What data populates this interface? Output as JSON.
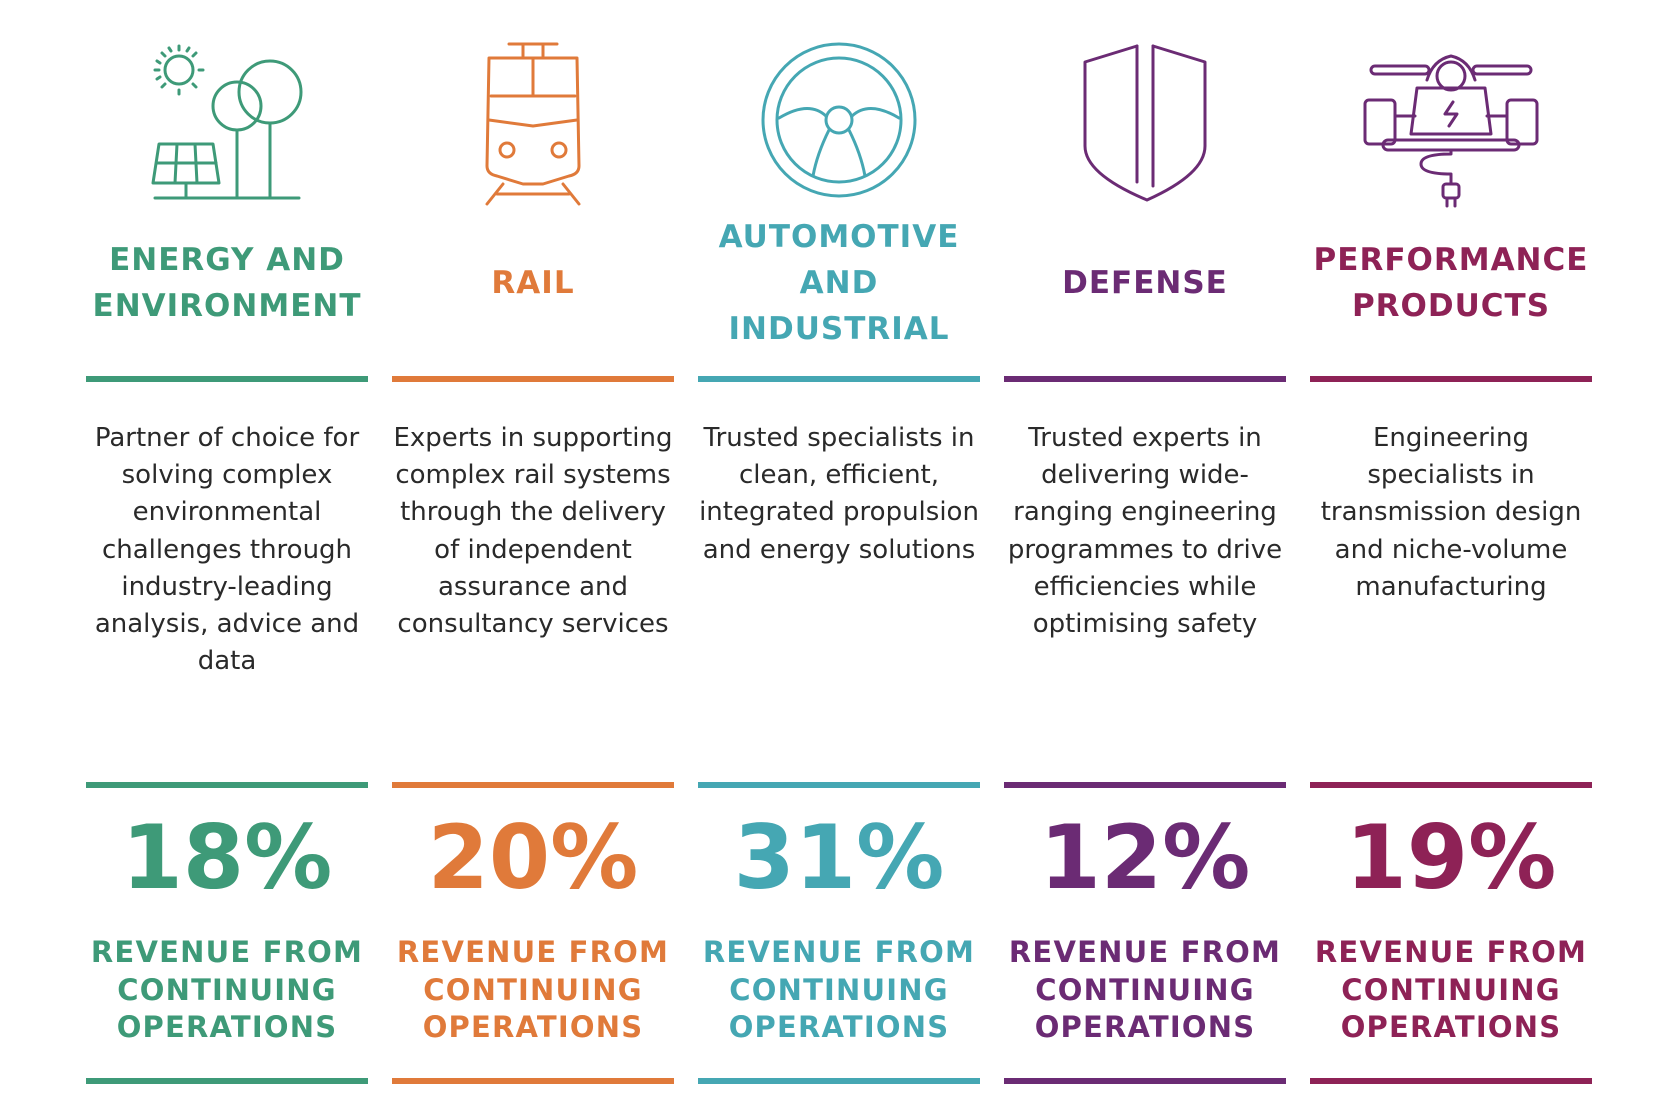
{
  "colors": {
    "energy": "#3e9a78",
    "rail": "#e07a3a",
    "automotive": "#45a7b3",
    "defense": "#6b2b74",
    "performance": "#8e2256"
  },
  "sectors": [
    {
      "icon": "solar-trees-icon",
      "title": "ENERGY AND ENVIRONMENT",
      "description": "Partner of choice for solving complex environmental challenges through industry-leading analysis, advice and data",
      "revenue_percent": "18%",
      "revenue_label": "REVENUE FROM CONTINUING OPERATIONS"
    },
    {
      "icon": "train-icon",
      "title": "RAIL",
      "description": "Experts in supporting complex rail systems through the delivery of independent assurance and consultancy services",
      "revenue_percent": "20%",
      "revenue_label": "REVENUE FROM CONTINUING OPERATIONS"
    },
    {
      "icon": "steering-wheel-icon",
      "title": "AUTOMOTIVE AND INDUSTRIAL",
      "description": "Trusted specialists in clean, efficient, integrated propulsion and energy solutions",
      "revenue_percent": "31%",
      "revenue_label": "REVENUE FROM CONTINUING OPERATIONS"
    },
    {
      "icon": "shield-icon",
      "title": "DEFENSE",
      "description": "Trusted experts in delivering wide-ranging engineering programmes to drive efficiencies while optimising safety",
      "revenue_percent": "12%",
      "revenue_label": "REVENUE FROM CONTINUING OPERATIONS"
    },
    {
      "icon": "electric-race-car-icon",
      "title": "PERFORMANCE PRODUCTS",
      "description": "Engineering specialists in transmission design and niche-volume manufacturing",
      "revenue_percent": "19%",
      "revenue_label": "REVENUE FROM CONTINUING OPERATIONS"
    }
  ]
}
